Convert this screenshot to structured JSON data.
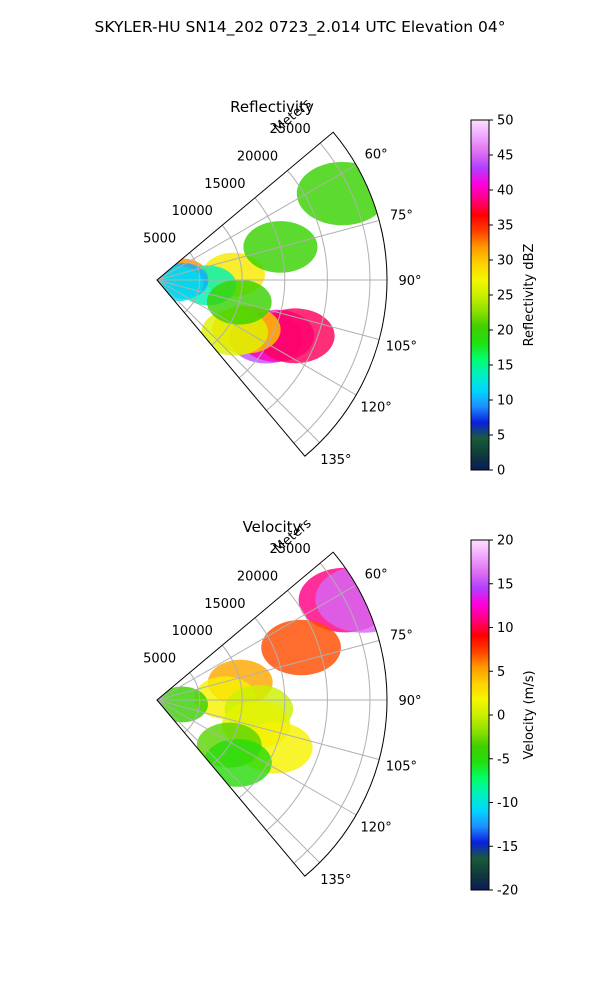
{
  "figure_title": "SKYLER-HU  SN14_202  0723_2.014 UTC Elevation 04°",
  "chart_data": [
    {
      "type": "polar-sector",
      "title": "Reflectivity",
      "range_label": "Meters",
      "range_ticks": [
        "5000",
        "10000",
        "15000",
        "20000",
        "25000"
      ],
      "angle_ticks": [
        "60°",
        "75°",
        "90°",
        "105°",
        "120°",
        "135°"
      ],
      "angle_range_deg": [
        50,
        140
      ],
      "range_max_m": 27000,
      "colorbar": {
        "label": "Reflectivity dBZ",
        "min": 0,
        "max": 50,
        "ticks": [
          "0",
          "5",
          "10",
          "15",
          "20",
          "25",
          "30",
          "35",
          "40",
          "45",
          "50"
        ],
        "stops": [
          "#0b1a5c",
          "#103c3a",
          "#1a5a3a",
          "#0a1fe0",
          "#1e90ff",
          "#00d7ff",
          "#00f0c0",
          "#00ff6a",
          "#22e010",
          "#3fcf00",
          "#8fe000",
          "#ccf000",
          "#f5f500",
          "#ffd000",
          "#ff9a00",
          "#ff4000",
          "#ff0000",
          "#ff0080",
          "#ff00e0",
          "#b040ff",
          "#e070f0",
          "#f0a8ff",
          "#fbe0ff"
        ]
      },
      "cells": [
        {
          "az": 86,
          "r": 9000,
          "v": 28
        },
        {
          "az": 82,
          "r": 3000,
          "v": 32
        },
        {
          "az": 118,
          "r": 14500,
          "v": 44
        },
        {
          "az": 115,
          "r": 15500,
          "v": 40
        },
        {
          "az": 112,
          "r": 17500,
          "v": 38
        },
        {
          "az": 119,
          "r": 12000,
          "v": 30
        },
        {
          "az": 124,
          "r": 11000,
          "v": 26
        },
        {
          "az": 96,
          "r": 6000,
          "v": 14
        },
        {
          "az": 92,
          "r": 3000,
          "v": 10
        },
        {
          "az": 100,
          "r": 2500,
          "v": 12
        },
        {
          "az": 75,
          "r": 15000,
          "v": 20
        },
        {
          "az": 65,
          "r": 24000,
          "v": 20
        },
        {
          "az": 105,
          "r": 10000,
          "v": 20
        }
      ]
    },
    {
      "type": "polar-sector",
      "title": "Velocity",
      "range_label": "Meters",
      "range_ticks": [
        "5000",
        "10000",
        "15000",
        "20000",
        "25000"
      ],
      "angle_ticks": [
        "60°",
        "75°",
        "90°",
        "105°",
        "120°",
        "135°"
      ],
      "angle_range_deg": [
        50,
        140
      ],
      "range_max_m": 27000,
      "colorbar": {
        "label": "Velocity (m/s)",
        "min": -20,
        "max": 20,
        "ticks": [
          "-20",
          "-15",
          "-10",
          "-5",
          "0",
          "5",
          "10",
          "15",
          "20"
        ],
        "stops": [
          "#0b1a5c",
          "#103c3a",
          "#1a5a3a",
          "#0a1fe0",
          "#1e90ff",
          "#00d7ff",
          "#00f0c0",
          "#00ff6a",
          "#22e010",
          "#3fcf00",
          "#8fe000",
          "#ccf000",
          "#f5f500",
          "#ffd000",
          "#ff9a00",
          "#ff4000",
          "#ff0000",
          "#ff0080",
          "#ff00e0",
          "#b040ff",
          "#e070f0",
          "#f0a8ff",
          "#fbe0ff"
        ]
      },
      "cells": [
        {
          "az": 62,
          "r": 25000,
          "v": 11
        },
        {
          "az": 64,
          "r": 27000,
          "v": 16
        },
        {
          "az": 70,
          "r": 18000,
          "v": 7
        },
        {
          "az": 78,
          "r": 10000,
          "v": 5
        },
        {
          "az": 88,
          "r": 8000,
          "v": 2
        },
        {
          "az": 95,
          "r": 12000,
          "v": 0
        },
        {
          "az": 104,
          "r": 12000,
          "v": 1
        },
        {
          "az": 112,
          "r": 15000,
          "v": 2
        },
        {
          "az": 122,
          "r": 10000,
          "v": -3
        },
        {
          "az": 128,
          "r": 12000,
          "v": -5
        },
        {
          "az": 100,
          "r": 3000,
          "v": -4
        }
      ]
    }
  ]
}
